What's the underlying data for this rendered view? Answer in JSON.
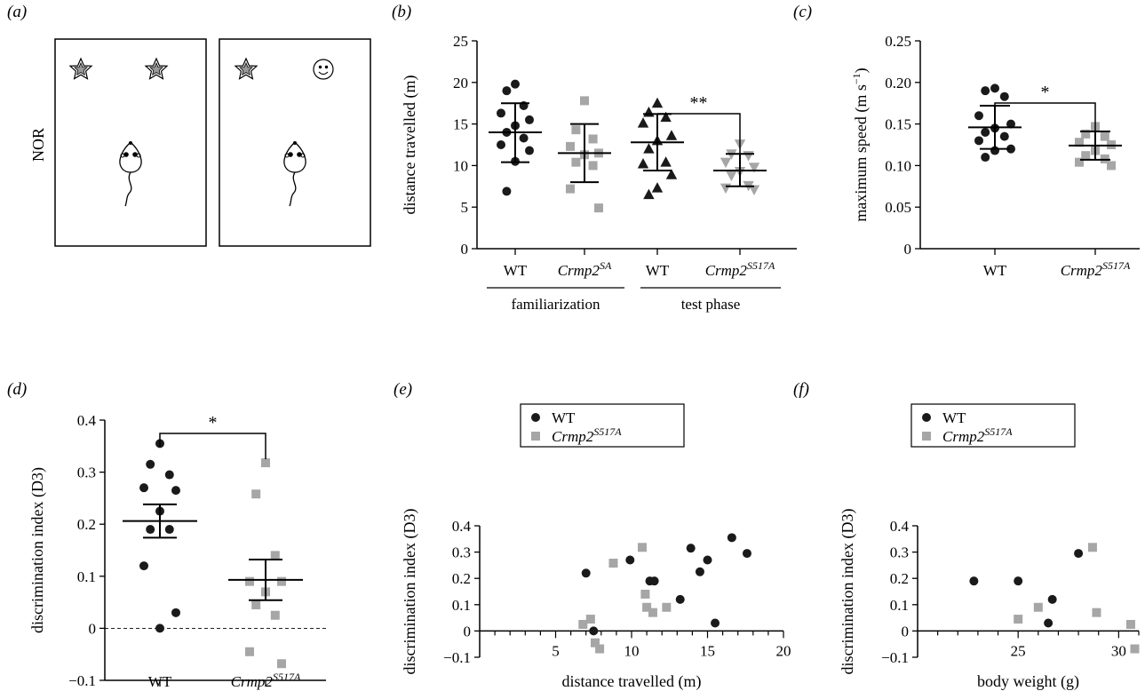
{
  "figure": {
    "nor_label": "NOR",
    "panel_labels": [
      "(a)",
      "(b)",
      "(c)",
      "(d)",
      "(e)",
      "(f)"
    ]
  },
  "colors": {
    "wt": "#1a1a1a",
    "mutant": "#a6a6a6"
  },
  "chart_data": [
    {
      "panel": "b",
      "type": "scatter",
      "ylabel": "distance travelled (m)",
      "ylim": [
        0,
        25
      ],
      "yticks": [
        "0",
        "5",
        "10",
        "15",
        "20",
        "25"
      ],
      "categories": [
        "WT",
        "Crmp2SA",
        "WT",
        "Crmp2S517A"
      ],
      "category_labels": [
        {
          "main": "WT",
          "sup": ""
        },
        {
          "main": "Crmp2",
          "sup": "SA"
        },
        {
          "main": "WT",
          "sup": ""
        },
        {
          "main": "Crmp2",
          "sup": "S517A"
        }
      ],
      "groups": [
        "familiarization",
        "test phase"
      ],
      "significance": "**",
      "series": [
        {
          "marker": "circle",
          "color": "wt",
          "mean": 14.0,
          "sd": [
            10.4,
            17.5
          ],
          "values": [
            19.8,
            19.0,
            17.2,
            16.3,
            15.5,
            14.8,
            14.0,
            13.3,
            12.5,
            11.8,
            10.5,
            6.9
          ]
        },
        {
          "marker": "square",
          "color": "mutant",
          "mean": 11.5,
          "sd": [
            8.0,
            15.0
          ],
          "values": [
            17.8,
            14.3,
            13.2,
            12.3,
            11.5,
            11.3,
            10.4,
            10.0,
            7.2,
            4.9
          ]
        },
        {
          "marker": "triangle-up",
          "color": "wt",
          "mean": 12.8,
          "sd": [
            9.4,
            16.2
          ],
          "values": [
            17.5,
            16.4,
            15.8,
            15.1,
            13.6,
            13.0,
            12.0,
            10.4,
            10.2,
            8.9,
            7.3,
            6.5
          ]
        },
        {
          "marker": "triangle-down",
          "color": "mutant",
          "mean": 9.4,
          "sd": [
            7.5,
            11.4
          ],
          "values": [
            12.6,
            11.4,
            11.2,
            10.4,
            9.8,
            9.3,
            8.8,
            7.6,
            7.3,
            7.1
          ]
        }
      ]
    },
    {
      "panel": "c",
      "type": "scatter",
      "ylabel": "maximum speed (m s",
      "ylabel_sup": "−1",
      "ylabel_end": ")",
      "ylim": [
        0,
        0.25
      ],
      "yticks": [
        "0",
        "0.05",
        "0.10",
        "0.15",
        "0.20",
        "0.25"
      ],
      "categories": [
        "WT",
        "Crmp2S517A"
      ],
      "category_labels": [
        {
          "main": "WT",
          "sup": ""
        },
        {
          "main": "Crmp2",
          "sup": "S517A"
        }
      ],
      "significance": "*",
      "series": [
        {
          "marker": "circle",
          "color": "wt",
          "mean": 0.146,
          "sd": [
            0.12,
            0.172
          ],
          "values": [
            0.193,
            0.19,
            0.183,
            0.16,
            0.15,
            0.145,
            0.14,
            0.135,
            0.13,
            0.12,
            0.118,
            0.11
          ]
        },
        {
          "marker": "square",
          "color": "mutant",
          "mean": 0.124,
          "sd": [
            0.107,
            0.141
          ],
          "values": [
            0.147,
            0.138,
            0.135,
            0.128,
            0.125,
            0.118,
            0.112,
            0.108,
            0.104,
            0.1
          ]
        }
      ]
    },
    {
      "panel": "d",
      "type": "scatter",
      "ylabel": "discrimination index (D3)",
      "ylim": [
        -0.1,
        0.4
      ],
      "yticks": [
        "−0.1",
        "0",
        "0.1",
        "0.2",
        "0.3",
        "0.4"
      ],
      "categories": [
        "WT",
        "Crmp2S517A"
      ],
      "category_labels": [
        {
          "main": "WT",
          "sup": ""
        },
        {
          "main": "Crmp2",
          "sup": "S517A"
        }
      ],
      "significance": "*",
      "zero_line": "dashed",
      "series": [
        {
          "marker": "circle",
          "color": "wt",
          "mean": 0.206,
          "sd": [
            0.174,
            0.238
          ],
          "values": [
            0.355,
            0.315,
            0.295,
            0.27,
            0.265,
            0.225,
            0.19,
            0.19,
            0.12,
            0.03,
            0.0
          ]
        },
        {
          "marker": "square",
          "color": "mutant",
          "mean": 0.093,
          "sd": [
            0.054,
            0.132
          ],
          "values": [
            0.318,
            0.258,
            0.14,
            0.09,
            0.09,
            0.07,
            0.045,
            0.025,
            -0.045,
            -0.068
          ]
        }
      ]
    },
    {
      "panel": "e",
      "type": "scatter",
      "xlabel": "distance travelled (m)",
      "ylabel": "discrimination index (D3)",
      "xlim": [
        0,
        20
      ],
      "ylim": [
        -0.1,
        0.4
      ],
      "xticks": [
        "5",
        "10",
        "15",
        "20"
      ],
      "yticks": [
        "−0.1",
        "0",
        "0.1",
        "0.2",
        "0.3",
        "0.4"
      ],
      "legend": [
        {
          "label": "WT",
          "sup": "",
          "marker": "circle",
          "color": "wt"
        },
        {
          "label": "Crmp2",
          "sup": "S517A",
          "marker": "square",
          "color": "mutant"
        }
      ],
      "series": [
        {
          "name": "WT",
          "marker": "circle",
          "color": "wt",
          "points": [
            [
              7.0,
              0.22
            ],
            [
              7.5,
              0.0
            ],
            [
              9.9,
              0.27
            ],
            [
              11.2,
              0.19
            ],
            [
              11.5,
              0.19
            ],
            [
              13.2,
              0.12
            ],
            [
              13.9,
              0.315
            ],
            [
              14.5,
              0.225
            ],
            [
              15.0,
              0.27
            ],
            [
              15.5,
              0.03
            ],
            [
              16.6,
              0.355
            ],
            [
              17.6,
              0.295
            ]
          ]
        },
        {
          "name": "Crmp2S517A",
          "marker": "square",
          "color": "mutant",
          "points": [
            [
              6.8,
              0.025
            ],
            [
              7.3,
              0.045
            ],
            [
              7.6,
              -0.045
            ],
            [
              7.9,
              -0.068
            ],
            [
              8.8,
              0.258
            ],
            [
              10.7,
              0.318
            ],
            [
              10.9,
              0.14
            ],
            [
              11.0,
              0.09
            ],
            [
              11.4,
              0.07
            ],
            [
              12.3,
              0.09
            ]
          ]
        }
      ]
    },
    {
      "panel": "f",
      "type": "scatter",
      "xlabel": "body weight (g)",
      "ylabel": "discrimination index (D3)",
      "xlim": [
        20,
        31
      ],
      "ylim": [
        -0.1,
        0.4
      ],
      "xticks": [
        "25",
        "30"
      ],
      "yticks": [
        "−0.1",
        "0",
        "0.1",
        "0.2",
        "0.3",
        "0.4"
      ],
      "legend": [
        {
          "label": "WT",
          "sup": "",
          "marker": "circle",
          "color": "wt"
        },
        {
          "label": "Crmp2",
          "sup": "S517A",
          "marker": "square",
          "color": "mutant"
        }
      ],
      "series": [
        {
          "name": "WT",
          "marker": "circle",
          "color": "wt",
          "points": [
            [
              22.8,
              0.19
            ],
            [
              25.0,
              0.19
            ],
            [
              26.7,
              0.12
            ],
            [
              26.5,
              0.03
            ],
            [
              28.0,
              0.295
            ]
          ]
        },
        {
          "name": "Crmp2S517A",
          "marker": "square",
          "color": "mutant",
          "points": [
            [
              25.0,
              0.045
            ],
            [
              26.0,
              0.09
            ],
            [
              28.7,
              0.318
            ],
            [
              28.9,
              0.07
            ],
            [
              30.6,
              0.025
            ],
            [
              30.8,
              -0.068
            ]
          ]
        }
      ]
    }
  ]
}
